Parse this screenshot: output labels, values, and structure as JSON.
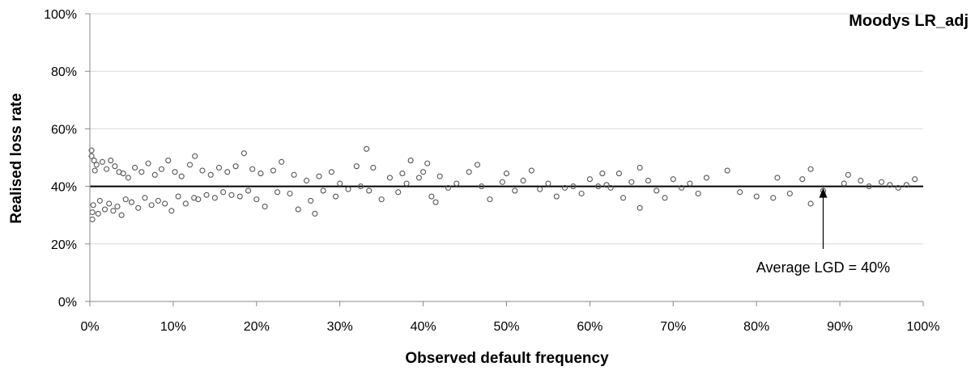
{
  "chart_data": {
    "type": "scatter",
    "title": "Moodys LR_adj",
    "xlabel": "Observed default frequency",
    "ylabel": "Realised loss rate",
    "xlim": [
      0,
      100
    ],
    "ylim": [
      0,
      100
    ],
    "x_ticks": [
      "0%",
      "10%",
      "20%",
      "30%",
      "40%",
      "50%",
      "60%",
      "70%",
      "80%",
      "90%",
      "100%"
    ],
    "y_ticks": [
      "0%",
      "20%",
      "40%",
      "60%",
      "80%",
      "100%"
    ],
    "grid": "horizontal",
    "marker": "hollow-circle",
    "marker_color": "#555555",
    "reference_line": {
      "y": 40,
      "color": "#000000"
    },
    "annotation": {
      "text": "Average LGD = 40%",
      "arrow_x": 88,
      "arrow_y": 40
    },
    "series": [
      {
        "points": [
          [
            0.2,
            52.5
          ],
          [
            0.3,
            31.0
          ],
          [
            0.5,
            49.0
          ],
          [
            0.4,
            33.5
          ],
          [
            0.8,
            47.5
          ],
          [
            1.0,
            30.5
          ],
          [
            0.6,
            45.5
          ],
          [
            1.2,
            35.0
          ],
          [
            0.3,
            28.5
          ],
          [
            0.2,
            50.5
          ],
          [
            1.5,
            48.5
          ],
          [
            1.8,
            32.0
          ],
          [
            2.0,
            46.0
          ],
          [
            2.3,
            34.0
          ],
          [
            2.5,
            49.0
          ],
          [
            2.8,
            31.5
          ],
          [
            3.0,
            47.0
          ],
          [
            3.3,
            33.0
          ],
          [
            3.5,
            45.0
          ],
          [
            3.8,
            30.0
          ],
          [
            4.0,
            44.5
          ],
          [
            4.3,
            35.5
          ],
          [
            4.6,
            43.0
          ],
          [
            5.0,
            34.5
          ],
          [
            5.4,
            46.5
          ],
          [
            5.8,
            32.5
          ],
          [
            6.2,
            45.0
          ],
          [
            6.6,
            36.0
          ],
          [
            7.0,
            48.0
          ],
          [
            7.4,
            33.5
          ],
          [
            7.8,
            44.0
          ],
          [
            8.2,
            35.0
          ],
          [
            8.6,
            46.0
          ],
          [
            9.0,
            34.0
          ],
          [
            9.4,
            49.0
          ],
          [
            9.8,
            31.5
          ],
          [
            10.2,
            45.0
          ],
          [
            10.6,
            36.5
          ],
          [
            11.0,
            43.5
          ],
          [
            11.5,
            34.0
          ],
          [
            12.0,
            47.5
          ],
          [
            12.5,
            36.0
          ],
          [
            12.6,
            50.5
          ],
          [
            13.0,
            35.5
          ],
          [
            13.5,
            45.5
          ],
          [
            14.0,
            37.0
          ],
          [
            14.5,
            44.0
          ],
          [
            15.0,
            36.0
          ],
          [
            15.5,
            46.5
          ],
          [
            16.0,
            38.0
          ],
          [
            16.5,
            45.0
          ],
          [
            17.0,
            37.0
          ],
          [
            17.5,
            47.0
          ],
          [
            18.0,
            36.5
          ],
          [
            18.5,
            51.5
          ],
          [
            19.0,
            38.5
          ],
          [
            19.5,
            46.0
          ],
          [
            20.0,
            35.5
          ],
          [
            20.5,
            44.5
          ],
          [
            21.0,
            33.0
          ],
          [
            22.0,
            45.5
          ],
          [
            22.5,
            38.0
          ],
          [
            23.0,
            48.5
          ],
          [
            24.0,
            37.5
          ],
          [
            24.5,
            44.0
          ],
          [
            25.0,
            32.0
          ],
          [
            26.0,
            42.0
          ],
          [
            26.5,
            35.0
          ],
          [
            27.0,
            30.5
          ],
          [
            27.5,
            43.5
          ],
          [
            28.0,
            38.5
          ],
          [
            29.0,
            45.0
          ],
          [
            29.5,
            36.5
          ],
          [
            30.0,
            41.0
          ],
          [
            31.0,
            39.0
          ],
          [
            32.0,
            47.0
          ],
          [
            32.5,
            40.0
          ],
          [
            33.2,
            53.0
          ],
          [
            33.5,
            38.5
          ],
          [
            34.0,
            46.5
          ],
          [
            35.0,
            35.5
          ],
          [
            36.0,
            43.0
          ],
          [
            37.0,
            38.0
          ],
          [
            37.5,
            44.5
          ],
          [
            38.5,
            49.0
          ],
          [
            38.0,
            41.0
          ],
          [
            39.5,
            43.0
          ],
          [
            40.5,
            48.0
          ],
          [
            40.0,
            45.0
          ],
          [
            41.0,
            36.5
          ],
          [
            41.5,
            34.5
          ],
          [
            42.0,
            43.5
          ],
          [
            43.0,
            39.5
          ],
          [
            44.0,
            41.0
          ],
          [
            45.5,
            45.0
          ],
          [
            46.5,
            47.5
          ],
          [
            47.0,
            40.0
          ],
          [
            48.0,
            35.5
          ],
          [
            49.5,
            41.5
          ],
          [
            50.0,
            44.5
          ],
          [
            51.0,
            38.5
          ],
          [
            52.0,
            42.0
          ],
          [
            53.0,
            45.5
          ],
          [
            54.0,
            39.0
          ],
          [
            55.0,
            41.0
          ],
          [
            56.0,
            36.5
          ],
          [
            57.0,
            39.5
          ],
          [
            58.0,
            40.0
          ],
          [
            59.0,
            37.5
          ],
          [
            60.0,
            42.5
          ],
          [
            61.0,
            40.0
          ],
          [
            61.5,
            44.5
          ],
          [
            62.0,
            40.5
          ],
          [
            62.5,
            39.5
          ],
          [
            63.5,
            44.5
          ],
          [
            64.0,
            36.0
          ],
          [
            65.0,
            41.5
          ],
          [
            66.0,
            46.5
          ],
          [
            66.0,
            32.5
          ],
          [
            67.0,
            42.0
          ],
          [
            68.0,
            38.5
          ],
          [
            69.0,
            36.0
          ],
          [
            70.0,
            42.5
          ],
          [
            71.0,
            39.5
          ],
          [
            72.0,
            41.0
          ],
          [
            73.0,
            37.5
          ],
          [
            74.0,
            43.0
          ],
          [
            76.5,
            45.5
          ],
          [
            78.0,
            38.0
          ],
          [
            80.0,
            36.5
          ],
          [
            82.0,
            36.0
          ],
          [
            82.5,
            43.0
          ],
          [
            84.0,
            37.5
          ],
          [
            85.5,
            42.5
          ],
          [
            86.5,
            46.0
          ],
          [
            86.5,
            34.0
          ],
          [
            88.0,
            38.5
          ],
          [
            90.5,
            41.0
          ],
          [
            91.0,
            44.0
          ],
          [
            92.5,
            42.0
          ],
          [
            93.5,
            40.0
          ],
          [
            95.0,
            41.5
          ],
          [
            96.0,
            40.5
          ],
          [
            97.0,
            39.5
          ],
          [
            98.0,
            40.5
          ],
          [
            99.0,
            42.5
          ]
        ]
      }
    ]
  }
}
